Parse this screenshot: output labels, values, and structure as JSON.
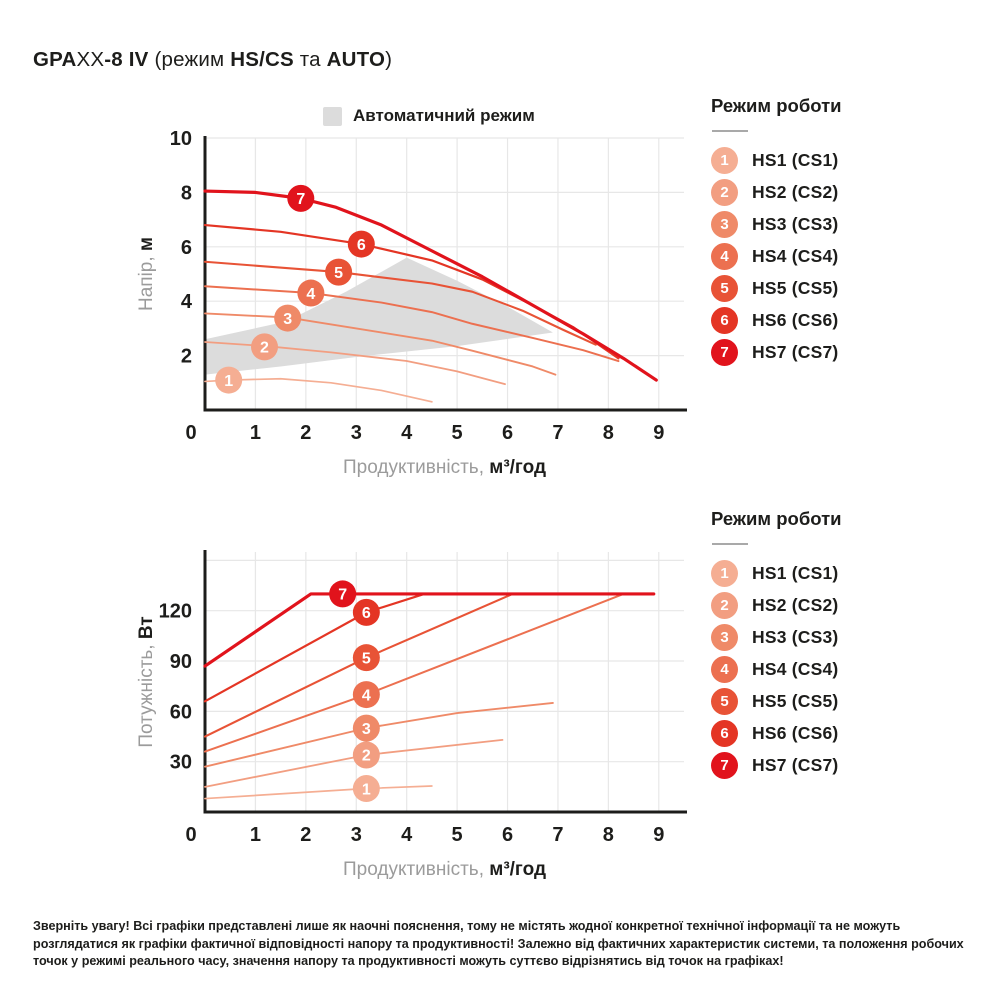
{
  "title": {
    "segments": [
      {
        "t": "GPA",
        "b": 1
      },
      {
        "t": "XX",
        "b": 0
      },
      {
        "t": "-8 IV ",
        "b": 1
      },
      {
        "t": "(режим ",
        "b": 0
      },
      {
        "t": "HS/CS",
        "b": 1
      },
      {
        "t": " та ",
        "b": 0
      },
      {
        "t": "AUTO",
        "b": 1
      },
      {
        "t": ")",
        "b": 0
      }
    ]
  },
  "auto_legend": {
    "label": "Автоматичний режим",
    "color": "#DCDCDC"
  },
  "legend": {
    "header": "Режим роботи",
    "items": [
      {
        "num": "1",
        "label": "HS1 (CS1)",
        "color": "#F5AE93"
      },
      {
        "num": "2",
        "label": "HS2 (CS2)",
        "color": "#F29E81"
      },
      {
        "num": "3",
        "label": "HS3 (CS3)",
        "color": "#EF8A68"
      },
      {
        "num": "4",
        "label": "HS4 (CS4)",
        "color": "#EC7050"
      },
      {
        "num": "5",
        "label": "HS5 (CS5)",
        "color": "#E85336"
      },
      {
        "num": "6",
        "label": "HS6 (CS6)",
        "color": "#E43524"
      },
      {
        "num": "7",
        "label": "HS7 (CS7)",
        "color": "#E1131C"
      }
    ]
  },
  "footer": "Зверніть увагу! Всі графіки представлені лише як наочні пояснення, тому не містять жодної конкретної технічної інформації та не можуть розглядатися як графіки фактичної відповідності напору та продуктивності! Залежно від фактичних характеристик системи, та положення робочих точок у режимі реального часу, значення напору та продуктивності можуть суттєво відрізнятись від точок на графіках!",
  "colors": {
    "axis": "#1d1d1b",
    "grid": "#E7E7E7",
    "auto_region": "#DCDCDC",
    "label_gray": "#9b9b9b",
    "marker_text": "#ffffff"
  },
  "chart_data": [
    {
      "type": "line",
      "name": "head-vs-flow",
      "xlabel": [
        {
          "text": "Продуктивність, ",
          "bold": false
        },
        {
          "text": "м³/год",
          "bold": true
        }
      ],
      "ylabel": [
        {
          "text": "Напір, ",
          "bold": false
        },
        {
          "text": "м",
          "bold": true
        }
      ],
      "xlim": [
        0,
        9.5
      ],
      "ylim": [
        0,
        10
      ],
      "xticks": [
        0,
        1,
        2,
        3,
        4,
        5,
        6,
        7,
        8,
        9
      ],
      "yticks": [
        2,
        4,
        6,
        8,
        10
      ],
      "xgrid": [
        1,
        2,
        3,
        4,
        5,
        6,
        7,
        8,
        9
      ],
      "ygrid": [
        2,
        4,
        6,
        8,
        10
      ],
      "auto_region": [
        [
          0,
          1.3
        ],
        [
          0,
          2.6
        ],
        [
          1.6,
          3.25
        ],
        [
          2.8,
          4.35
        ],
        [
          4.0,
          5.6
        ],
        [
          5.0,
          4.75
        ],
        [
          6.0,
          3.8
        ],
        [
          6.9,
          2.85
        ],
        [
          5.0,
          2.35
        ],
        [
          3.0,
          1.95
        ],
        [
          1.5,
          1.6
        ]
      ],
      "series": [
        {
          "name": "HS1 (CS1)",
          "marker": "1",
          "color": "#F5AE93",
          "width": 1.7,
          "marker_at": [
            0.47,
            1.1
          ],
          "points": [
            [
              0,
              1.05
            ],
            [
              0.5,
              1.1
            ],
            [
              1.5,
              1.15
            ],
            [
              2.5,
              1.0
            ],
            [
              3.5,
              0.72
            ],
            [
              4.5,
              0.3
            ]
          ]
        },
        {
          "name": "HS2 (CS2)",
          "marker": "2",
          "color": "#F29E81",
          "width": 1.8,
          "marker_at": [
            1.18,
            2.32
          ],
          "points": [
            [
              0,
              2.5
            ],
            [
              1.2,
              2.35
            ],
            [
              2.5,
              2.12
            ],
            [
              4,
              1.8
            ],
            [
              5,
              1.42
            ],
            [
              5.95,
              0.95
            ]
          ]
        },
        {
          "name": "HS3 (CS3)",
          "marker": "3",
          "color": "#EF8A68",
          "width": 1.9,
          "marker_at": [
            1.64,
            3.38
          ],
          "points": [
            [
              0,
              3.55
            ],
            [
              1.65,
              3.4
            ],
            [
              3,
              3.0
            ],
            [
              4.5,
              2.55
            ],
            [
              5.3,
              2.18
            ],
            [
              6.5,
              1.6
            ],
            [
              6.95,
              1.3
            ]
          ]
        },
        {
          "name": "HS4 (CS4)",
          "marker": "4",
          "color": "#EC7050",
          "width": 2,
          "marker_at": [
            2.1,
            4.3
          ],
          "points": [
            [
              0,
              4.55
            ],
            [
              2.1,
              4.3
            ],
            [
              3.5,
              3.95
            ],
            [
              4.5,
              3.6
            ],
            [
              5.3,
              3.17
            ],
            [
              6.5,
              2.65
            ],
            [
              7.5,
              2.2
            ],
            [
              8.2,
              1.8
            ]
          ]
        },
        {
          "name": "HS5 (CS5)",
          "marker": "5",
          "color": "#E85336",
          "width": 2.1,
          "marker_at": [
            2.65,
            5.07
          ],
          "points": [
            [
              0,
              5.45
            ],
            [
              2.65,
              5.07
            ],
            [
              4.5,
              4.65
            ],
            [
              5.3,
              4.35
            ],
            [
              6.3,
              3.65
            ],
            [
              7.1,
              2.95
            ],
            [
              7.75,
              2.4
            ]
          ]
        },
        {
          "name": "HS6 (CS6)",
          "marker": "6",
          "color": "#E43524",
          "width": 2.2,
          "marker_at": [
            3.1,
            6.1
          ],
          "points": [
            [
              0,
              6.8
            ],
            [
              1.5,
              6.55
            ],
            [
              3.1,
              6.1
            ],
            [
              4.5,
              5.5
            ],
            [
              5.5,
              4.8
            ],
            [
              6.5,
              3.85
            ],
            [
              7.3,
              3.05
            ],
            [
              8.2,
              1.9
            ]
          ]
        },
        {
          "name": "HS7 (CS7)",
          "marker": "7",
          "color": "#E1131C",
          "width": 3.2,
          "marker_at": [
            1.9,
            7.78
          ],
          "points": [
            [
              0,
              8.05
            ],
            [
              1,
              8.0
            ],
            [
              1.9,
              7.78
            ],
            [
              2.6,
              7.45
            ],
            [
              3.5,
              6.8
            ],
            [
              4.5,
              5.85
            ],
            [
              5.5,
              4.9
            ],
            [
              6.5,
              3.85
            ],
            [
              7.5,
              2.8
            ],
            [
              8.3,
              1.9
            ],
            [
              8.95,
              1.1
            ]
          ]
        }
      ]
    },
    {
      "type": "line",
      "name": "power-vs-flow",
      "xlabel": [
        {
          "text": "Продуктивність, ",
          "bold": false
        },
        {
          "text": "м³/год",
          "bold": true
        }
      ],
      "ylabel": [
        {
          "text": "Потужність, ",
          "bold": false
        },
        {
          "text": "Вт",
          "bold": true
        }
      ],
      "xlim": [
        0,
        9.5
      ],
      "ylim": [
        0,
        155
      ],
      "xticks": [
        0,
        1,
        2,
        3,
        4,
        5,
        6,
        7,
        8,
        9
      ],
      "yticks": [
        30,
        60,
        90,
        120
      ],
      "xgrid": [
        1,
        2,
        3,
        4,
        5,
        6,
        7,
        8,
        9
      ],
      "ygrid": [
        30,
        60,
        90,
        120,
        150
      ],
      "auto_region": null,
      "series": [
        {
          "name": "HS1 (CS1)",
          "marker": "1",
          "color": "#F5AE93",
          "width": 1.7,
          "marker_at": [
            3.2,
            14
          ],
          "points": [
            [
              0,
              8
            ],
            [
              3.2,
              14
            ],
            [
              4.5,
              15.5
            ]
          ]
        },
        {
          "name": "HS2 (CS2)",
          "marker": "2",
          "color": "#F29E81",
          "width": 1.8,
          "marker_at": [
            3.2,
            34
          ],
          "points": [
            [
              0,
              15
            ],
            [
              3.2,
              34
            ],
            [
              5.9,
              43
            ]
          ]
        },
        {
          "name": "HS3 (CS3)",
          "marker": "3",
          "color": "#EF8A68",
          "width": 1.9,
          "marker_at": [
            3.2,
            50
          ],
          "points": [
            [
              0,
              27
            ],
            [
              3.2,
              50
            ],
            [
              5,
              59
            ],
            [
              6.9,
              65
            ]
          ]
        },
        {
          "name": "HS4 (CS4)",
          "marker": "4",
          "color": "#EC7050",
          "width": 2,
          "marker_at": [
            3.2,
            70
          ],
          "points": [
            [
              0,
              36
            ],
            [
              3.2,
              70
            ],
            [
              8.3,
              130
            ]
          ]
        },
        {
          "name": "HS5 (CS5)",
          "marker": "5",
          "color": "#E85336",
          "width": 2.1,
          "marker_at": [
            3.2,
            92
          ],
          "points": [
            [
              0,
              45
            ],
            [
              3.2,
              92
            ],
            [
              6.1,
              130
            ]
          ]
        },
        {
          "name": "HS6 (CS6)",
          "marker": "6",
          "color": "#E43524",
          "width": 2.2,
          "marker_at": [
            3.2,
            119
          ],
          "points": [
            [
              0,
              66
            ],
            [
              3.2,
              119
            ],
            [
              4.35,
              130
            ]
          ]
        },
        {
          "name": "HS7 (CS7)",
          "marker": "7",
          "color": "#E1131C",
          "width": 3.2,
          "marker_at": [
            2.73,
            130
          ],
          "points": [
            [
              0,
              87
            ],
            [
              2.1,
              130
            ],
            [
              8.9,
              130
            ]
          ]
        }
      ]
    }
  ]
}
